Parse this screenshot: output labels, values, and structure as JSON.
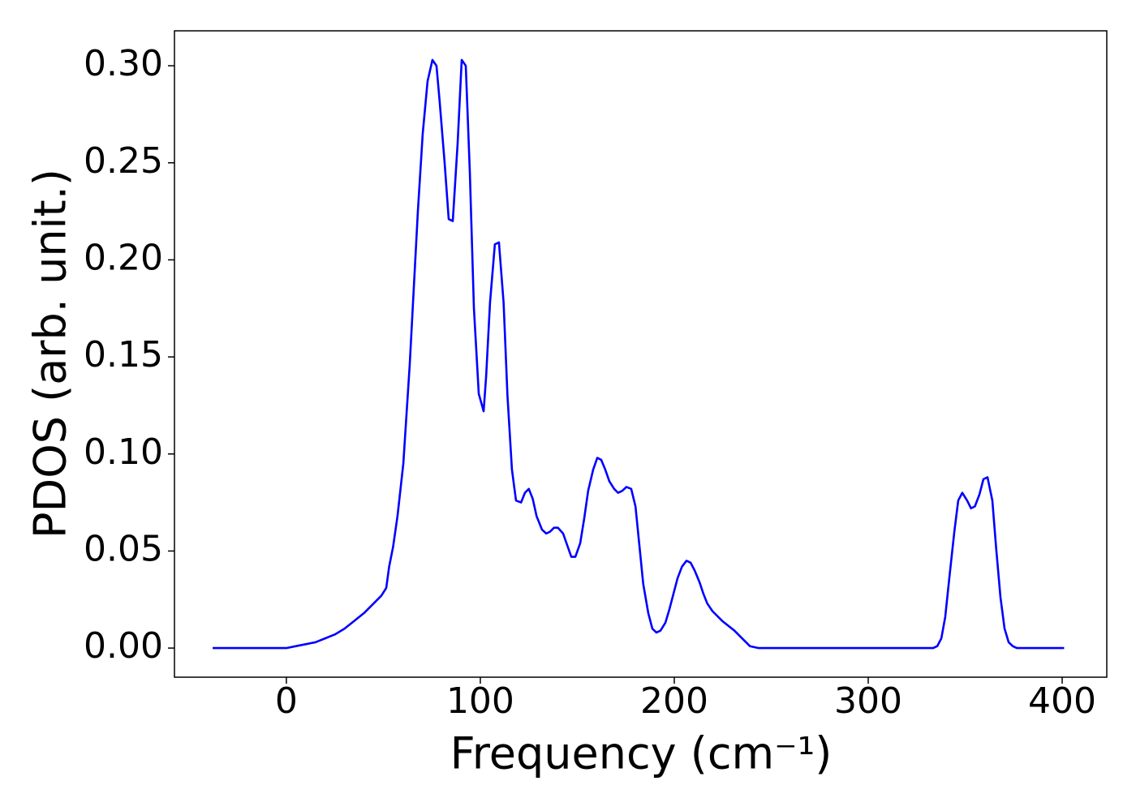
{
  "chart_data": {
    "type": "line",
    "xlabel": "Frequency (cm⁻¹)",
    "ylabel": "PDOS (arb. unit.)",
    "series": [
      {
        "color": "#0000ff",
        "x": [
          -38,
          0,
          5,
          10,
          15,
          20,
          25,
          30,
          35,
          40,
          45,
          49,
          51.5,
          53,
          55,
          57.3,
          60.3,
          63.6,
          67.8,
          70.3,
          72.8,
          75.3,
          77.4,
          79,
          81.6,
          83.7,
          85.8,
          88.3,
          90.4,
          92.5,
          94.6,
          96.7,
          99.2,
          101.7,
          103,
          105,
          107.5,
          109.6,
          112,
          114,
          116.3,
          118.4,
          121,
          123,
          125,
          127,
          129,
          131.8,
          134,
          136,
          138,
          140,
          142.7,
          144.8,
          146.9,
          149,
          151.5,
          153.6,
          155.6,
          158.2,
          160.3,
          162.3,
          164.4,
          166.5,
          169,
          171,
          173.2,
          175.3,
          177.8,
          180,
          182,
          184,
          186.6,
          188.7,
          190.8,
          192.9,
          195.4,
          197.5,
          199.6,
          201.7,
          204,
          206.3,
          208.4,
          210.5,
          213,
          215,
          217,
          219.7,
          224.7,
          231,
          236,
          239,
          243.5,
          333.5,
          335.6,
          337.7,
          339.7,
          341.8,
          344.4,
          346.4,
          348.5,
          351,
          353,
          355,
          357.3,
          359.4,
          361.5,
          364,
          366,
          368.2,
          370.3,
          372.4,
          374.5,
          376.6,
          401
        ],
        "values": [
          0,
          0,
          0.001,
          0.002,
          0.003,
          0.005,
          0.007,
          0.01,
          0.014,
          0.018,
          0.023,
          0.027,
          0.031,
          0.042,
          0.052,
          0.068,
          0.095,
          0.146,
          0.225,
          0.265,
          0.292,
          0.303,
          0.3,
          0.282,
          0.25,
          0.221,
          0.22,
          0.26,
          0.303,
          0.3,
          0.245,
          0.175,
          0.131,
          0.122,
          0.14,
          0.178,
          0.208,
          0.209,
          0.178,
          0.13,
          0.092,
          0.076,
          0.075,
          0.08,
          0.082,
          0.077,
          0.068,
          0.061,
          0.059,
          0.06,
          0.062,
          0.062,
          0.059,
          0.053,
          0.047,
          0.047,
          0.054,
          0.067,
          0.081,
          0.092,
          0.098,
          0.097,
          0.092,
          0.086,
          0.082,
          0.08,
          0.081,
          0.083,
          0.082,
          0.073,
          0.053,
          0.033,
          0.018,
          0.01,
          0.008,
          0.009,
          0.013,
          0.02,
          0.028,
          0.036,
          0.042,
          0.045,
          0.044,
          0.04,
          0.034,
          0.028,
          0.023,
          0.019,
          0.014,
          0.009,
          0.004,
          0.001,
          0,
          0,
          0.001,
          0.005,
          0.016,
          0.036,
          0.06,
          0.076,
          0.08,
          0.076,
          0.072,
          0.073,
          0.079,
          0.087,
          0.088,
          0.076,
          0.051,
          0.026,
          0.01,
          0.003,
          0.001,
          0,
          0
        ]
      }
    ],
    "xlim": [
      -57.7,
      423
    ],
    "ylim": [
      -0.015,
      0.318
    ],
    "xticks": [
      0,
      100,
      200,
      300,
      400
    ],
    "yticks": [
      {
        "value": 0,
        "label": "0.00"
      },
      {
        "value": 0.05,
        "label": "0.05"
      },
      {
        "value": 0.1,
        "label": "0.10"
      },
      {
        "value": 0.15,
        "label": "0.15"
      },
      {
        "value": 0.2,
        "label": "0.20"
      },
      {
        "value": 0.25,
        "label": "0.25"
      },
      {
        "value": 0.3,
        "label": "0.30"
      }
    ],
    "grid": false
  }
}
